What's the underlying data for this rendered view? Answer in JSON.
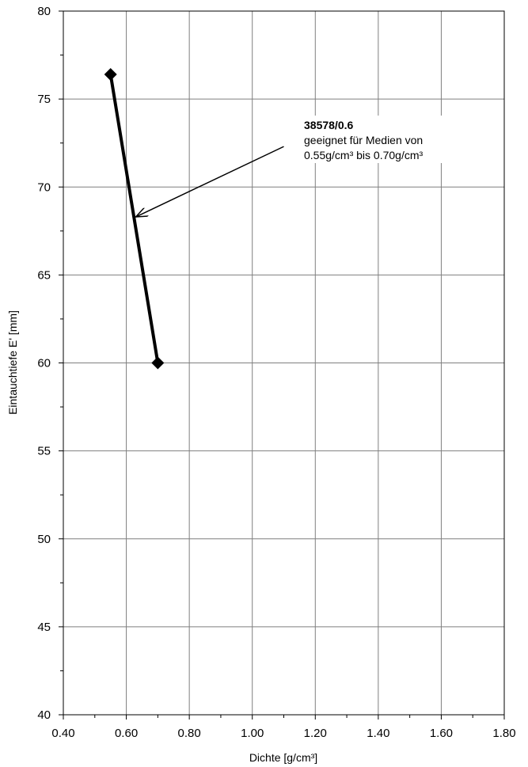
{
  "chart_data": {
    "type": "line",
    "x": [
      0.55,
      0.7
    ],
    "series": [
      {
        "values": [
          76.4,
          60.0
        ],
        "color": "#000000",
        "marker": "diamond"
      }
    ],
    "xlabel": "Dichte [g/cm³]",
    "ylabel": "Eintauchtiefe E' [mm]",
    "xlim": [
      0.4,
      1.8
    ],
    "ylim": [
      40,
      80
    ],
    "xticks": [
      "0.40",
      "0.60",
      "0.80",
      "1.00",
      "1.20",
      "1.40",
      "1.60",
      "1.80"
    ],
    "yticks": [
      "40",
      "45",
      "50",
      "55",
      "60",
      "65",
      "70",
      "75",
      "80"
    ],
    "grid": true,
    "annotation": {
      "title": "38578/0.6",
      "line1": "geeignet für Medien von",
      "line2": "0.55g/cm³ bis 0.70g/cm³",
      "arrow_target": {
        "x": 0.63,
        "y": 68.3
      },
      "arrow_source": {
        "x": 1.1,
        "y": 72.3
      }
    }
  }
}
